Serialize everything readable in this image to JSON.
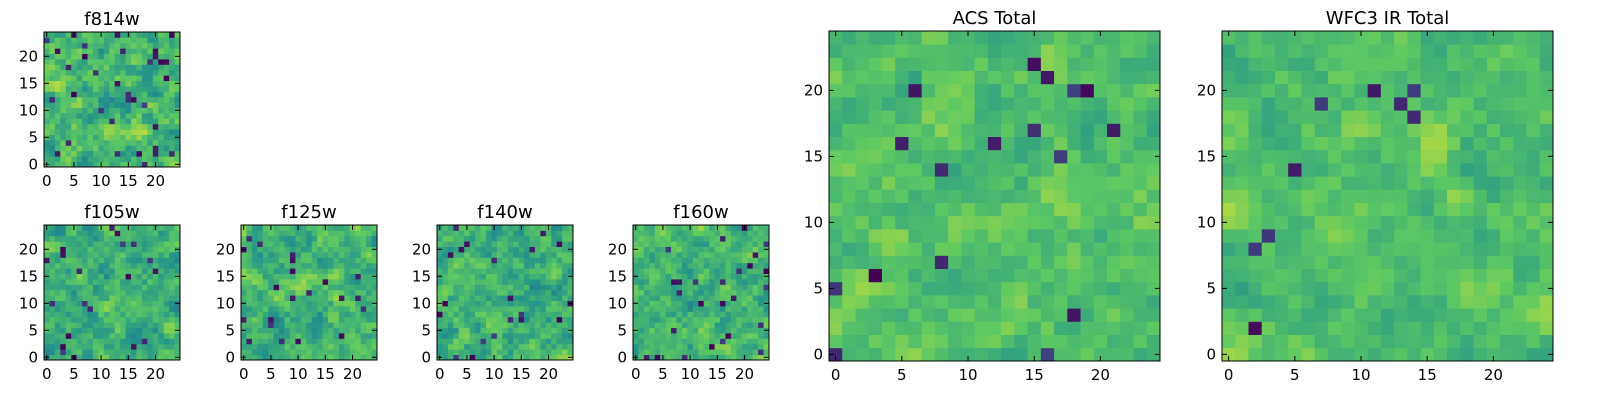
{
  "chart_data": [
    {
      "type": "heatmap",
      "title": "f814w",
      "xticks": [
        "0",
        "5",
        "10",
        "15",
        "20"
      ],
      "yticks": [
        "0",
        "5",
        "10",
        "15",
        "20"
      ],
      "xlim": [
        0,
        25
      ],
      "ylim": [
        0,
        25
      ],
      "grid_size": 25,
      "colormap": "viridis",
      "mean": 0.66,
      "spread": 0.2,
      "dark_frac": 0.05
    },
    {
      "type": "heatmap",
      "title": "f105w",
      "xticks": [
        "0",
        "5",
        "10",
        "15",
        "20"
      ],
      "yticks": [
        "0",
        "5",
        "10",
        "15",
        "20"
      ],
      "xlim": [
        0,
        25
      ],
      "ylim": [
        0,
        25
      ],
      "grid_size": 25,
      "colormap": "viridis",
      "mean": 0.62,
      "spread": 0.18,
      "dark_frac": 0.04
    },
    {
      "type": "heatmap",
      "title": "f125w",
      "xticks": [
        "0",
        "5",
        "10",
        "15",
        "20"
      ],
      "yticks": [
        "0",
        "5",
        "10",
        "15",
        "20"
      ],
      "xlim": [
        0,
        25
      ],
      "ylim": [
        0,
        25
      ],
      "grid_size": 25,
      "colormap": "viridis",
      "mean": 0.64,
      "spread": 0.18,
      "dark_frac": 0.03
    },
    {
      "type": "heatmap",
      "title": "f140w",
      "xticks": [
        "0",
        "5",
        "10",
        "15",
        "20"
      ],
      "yticks": [
        "0",
        "5",
        "10",
        "15",
        "20"
      ],
      "xlim": [
        0,
        25
      ],
      "ylim": [
        0,
        25
      ],
      "grid_size": 25,
      "colormap": "viridis",
      "mean": 0.63,
      "spread": 0.18,
      "dark_frac": 0.03
    },
    {
      "type": "heatmap",
      "title": "f160w",
      "xticks": [
        "0",
        "5",
        "10",
        "15",
        "20"
      ],
      "yticks": [
        "0",
        "5",
        "10",
        "15",
        "20"
      ],
      "xlim": [
        0,
        25
      ],
      "ylim": [
        0,
        25
      ],
      "grid_size": 25,
      "colormap": "viridis",
      "mean": 0.65,
      "spread": 0.17,
      "dark_frac": 0.03
    },
    {
      "type": "heatmap",
      "title": "ACS Total",
      "xticks": [
        "0",
        "5",
        "10",
        "15",
        "20"
      ],
      "yticks": [
        "0",
        "5",
        "10",
        "15",
        "20"
      ],
      "xlim": [
        0,
        25
      ],
      "ylim": [
        0,
        25
      ],
      "grid_size": 25,
      "colormap": "viridis",
      "mean": 0.7,
      "spread": 0.14,
      "dark_frac": 0.03
    },
    {
      "type": "heatmap",
      "title": "WFC3 IR Total",
      "xticks": [
        "0",
        "5",
        "10",
        "15",
        "20"
      ],
      "yticks": [
        "0",
        "5",
        "10",
        "15",
        "20"
      ],
      "xlim": [
        0,
        25
      ],
      "ylim": [
        0,
        25
      ],
      "grid_size": 25,
      "colormap": "viridis",
      "mean": 0.7,
      "spread": 0.13,
      "dark_frac": 0.02
    }
  ],
  "colormap_stops": [
    "#440154",
    "#3b528b",
    "#21918c",
    "#5ec962",
    "#fde725"
  ]
}
